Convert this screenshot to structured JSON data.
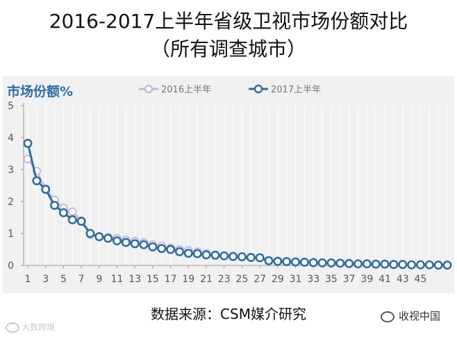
{
  "header": {
    "title": "2016-2017上半年省级卫视市场份额对比",
    "subtitle": "（所有调查城市）"
  },
  "footer": {
    "source": "数据来源：CSM媒介研究",
    "watermark_left": "大数跨境",
    "watermark_right": "收视中国"
  },
  "chart_data": {
    "type": "line",
    "ylabel": "市场份额%",
    "ylim": [
      0,
      5
    ],
    "yticks": [
      0,
      1,
      2,
      3,
      4,
      5
    ],
    "xlim": [
      1,
      48
    ],
    "xticks": [
      1,
      3,
      5,
      7,
      9,
      11,
      13,
      15,
      17,
      19,
      21,
      23,
      25,
      27,
      29,
      31,
      33,
      35,
      37,
      39,
      41,
      43,
      45
    ],
    "grid": true,
    "legend_position": "top",
    "series": [
      {
        "name": "2016上半年",
        "color": "#c4b8d6",
        "x": [
          1,
          2,
          3,
          4,
          5,
          6,
          7,
          8,
          9,
          10,
          11,
          12,
          13,
          14,
          15,
          16,
          17,
          18,
          19,
          20,
          21
        ],
        "values": [
          3.33,
          2.95,
          2.4,
          2.05,
          1.8,
          1.68,
          1.4,
          0.97,
          0.9,
          0.88,
          0.85,
          0.8,
          0.76,
          0.72,
          0.65,
          0.62,
          0.55,
          0.5,
          0.47,
          0.43,
          0.38
        ]
      },
      {
        "name": "2017上半年",
        "color": "#2e6da4",
        "x": [
          1,
          2,
          3,
          4,
          5,
          6,
          7,
          8,
          9,
          10,
          11,
          12,
          13,
          14,
          15,
          16,
          17,
          18,
          19,
          20,
          21,
          22,
          23,
          24,
          25,
          26,
          27,
          28,
          29,
          30,
          31,
          32,
          33,
          34,
          35,
          36,
          37,
          38,
          39,
          40,
          41,
          42,
          43,
          44,
          45,
          46,
          47,
          48
        ],
        "values": [
          3.82,
          2.65,
          2.38,
          1.88,
          1.65,
          1.43,
          1.38,
          1.0,
          0.9,
          0.85,
          0.77,
          0.72,
          0.68,
          0.65,
          0.58,
          0.53,
          0.5,
          0.43,
          0.38,
          0.37,
          0.33,
          0.32,
          0.3,
          0.28,
          0.27,
          0.25,
          0.24,
          0.15,
          0.13,
          0.12,
          0.11,
          0.1,
          0.09,
          0.08,
          0.08,
          0.07,
          0.06,
          0.05,
          0.05,
          0.04,
          0.04,
          0.03,
          0.03,
          0.02,
          0.02,
          0.02,
          0.01,
          0.01
        ]
      }
    ]
  }
}
